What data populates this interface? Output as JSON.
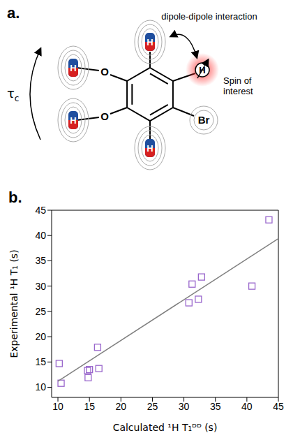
{
  "diagram": {
    "panel_label": "a.",
    "rotation_label": "τc",
    "interaction_label": "dipole-dipole interaction",
    "spin_label": "Spin of interest",
    "atoms": {
      "hydrogen": "H",
      "oxygen": "O",
      "bromine": "Br"
    }
  },
  "chart_data": {
    "type": "scatter",
    "title": "b.",
    "x_label": "Calculated ¹H T₁ᴰᴰ (s)",
    "y_label": "Experimental ¹H T₁ (s)",
    "xlim": [
      9,
      45
    ],
    "ylim": [
      8,
      45
    ],
    "xticks": [
      10,
      15,
      20,
      25,
      30,
      35,
      40,
      45
    ],
    "yticks": [
      10,
      15,
      20,
      25,
      30,
      35,
      40,
      45
    ],
    "grid": false,
    "series": [
      {
        "type": "scatter",
        "color": "#9966cc",
        "marker": "square",
        "x": [
          10.2,
          10.5,
          14.7,
          14.8,
          15.0,
          16.3,
          16.5,
          30.8,
          31.3,
          32.3,
          32.8,
          40.8,
          43.5
        ],
        "values": [
          14.7,
          10.8,
          13.3,
          11.9,
          13.5,
          17.9,
          13.7,
          26.7,
          30.4,
          27.4,
          31.8,
          30.0,
          43.1
        ]
      },
      {
        "type": "line",
        "color": "#808080",
        "line_style": "solid",
        "x": [
          10,
          45
        ],
        "values": [
          11.2,
          39.4
        ]
      }
    ]
  }
}
